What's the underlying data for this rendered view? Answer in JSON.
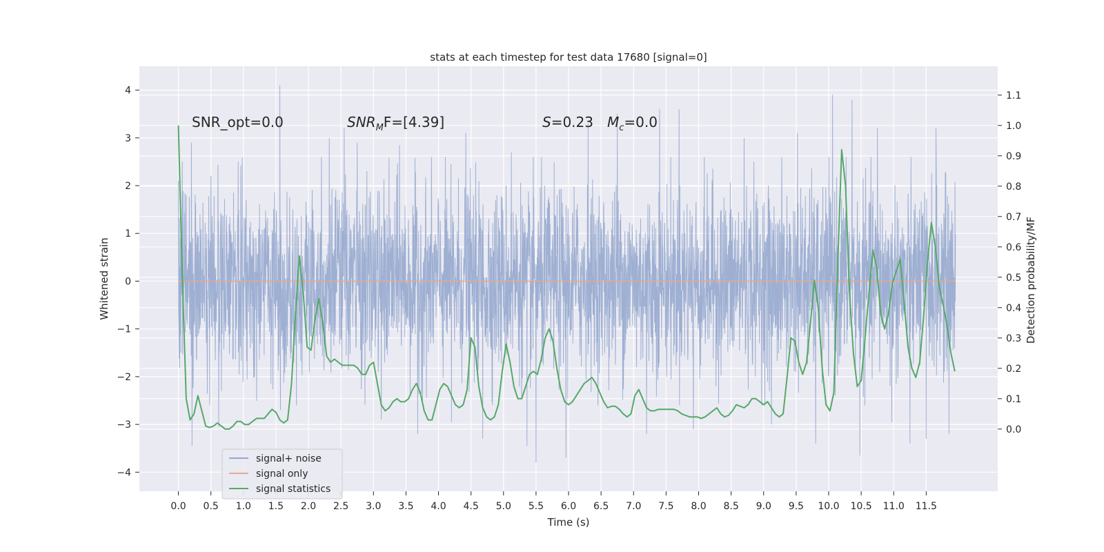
{
  "chart_data": {
    "type": "line",
    "title": "stats at each timestep for test data 17680 [signal=0]",
    "xlabel": "Time (s)",
    "ylabel_left": "Whitened strain",
    "ylabel_right": "Detection probability/MF",
    "xlim": [
      -0.6,
      12.6
    ],
    "ylim_left": [
      -4.4,
      4.5
    ],
    "ylim_right": [
      -0.205,
      1.195
    ],
    "x_ticks": [
      0.0,
      0.5,
      1.0,
      1.5,
      2.0,
      2.5,
      3.0,
      3.5,
      4.0,
      4.5,
      5.0,
      5.5,
      6.0,
      6.5,
      7.0,
      7.5,
      8.0,
      8.5,
      9.0,
      9.5,
      10.0,
      10.5,
      11.0,
      11.5
    ],
    "x_tick_labels": [
      "0.0",
      "0.5",
      "1.0",
      "1.5",
      "2.0",
      "2.5",
      "3.0",
      "3.5",
      "4.0",
      "4.5",
      "5.0",
      "5.5",
      "6.0",
      "6.5",
      "7.0",
      "7.5",
      "8.0",
      "8.5",
      "9.0",
      "9.5",
      "10.0",
      "10.5",
      "11.0",
      "11.5"
    ],
    "y_left_ticks": [
      -4,
      -3,
      -2,
      -1,
      0,
      1,
      2,
      3,
      4
    ],
    "y_left_tick_labels": [
      "−4",
      "−3",
      "−2",
      "−1",
      "0",
      "1",
      "2",
      "3",
      "4"
    ],
    "y_right_ticks": [
      0.0,
      0.1,
      0.2,
      0.3,
      0.4,
      0.5,
      0.6,
      0.7,
      0.8,
      0.9,
      1.0,
      1.1
    ],
    "y_right_tick_labels": [
      "0.0",
      "0.1",
      "0.2",
      "0.3",
      "0.4",
      "0.5",
      "0.6",
      "0.7",
      "0.8",
      "0.9",
      "1.0",
      "1.1"
    ],
    "annotations": {
      "snr_opt": "SNR_opt=0.0",
      "snr_mf_main": "SNR",
      "snr_mf_sub": "M",
      "snr_mf_tail": "F=[4.39]",
      "s_italic": "S",
      "s_tail": "=0.23",
      "mc_main": "M",
      "mc_sub": "c",
      "mc_tail": "=0.0"
    },
    "legend": {
      "position": "lower-left",
      "entries": [
        {
          "label": "signal+ noise",
          "color": "#92a7cf"
        },
        {
          "label": "signal only",
          "color": "#e5a990"
        },
        {
          "label": "signal statistics",
          "color": "#55a868"
        }
      ]
    },
    "series": [
      {
        "name": "signal+ noise",
        "axis": "left",
        "color": "#9aacd0",
        "description": "dense whitened strain samples from 0.0 to 11.95 s, mostly within about [-2, 2]",
        "t_start": 0.0,
        "t_end": 11.95,
        "spikes": [
          {
            "t": 0.0,
            "v": 2.1
          },
          {
            "t": 0.06,
            "v": 2.5
          },
          {
            "t": 0.2,
            "v": 2.9
          },
          {
            "t": 0.21,
            "v": -3.45
          },
          {
            "t": 0.5,
            "v": 2.2
          },
          {
            "t": 0.62,
            "v": -3.05
          },
          {
            "t": 0.92,
            "v": 2.5
          },
          {
            "t": 1.56,
            "v": 4.1
          },
          {
            "t": 1.57,
            "v": -2.7
          },
          {
            "t": 2.2,
            "v": 2.6
          },
          {
            "t": 2.32,
            "v": 3.0
          },
          {
            "t": 2.55,
            "v": 3.2
          },
          {
            "t": 2.75,
            "v": 2.9
          },
          {
            "t": 3.12,
            "v": -2.9
          },
          {
            "t": 3.4,
            "v": 2.85
          },
          {
            "t": 3.68,
            "v": -3.2
          },
          {
            "t": 4.2,
            "v": -2.95
          },
          {
            "t": 4.42,
            "v": 3.1
          },
          {
            "t": 4.68,
            "v": -3.3
          },
          {
            "t": 5.12,
            "v": 2.7
          },
          {
            "t": 5.36,
            "v": -3.45
          },
          {
            "t": 5.5,
            "v": -3.8
          },
          {
            "t": 5.96,
            "v": -3.7
          },
          {
            "t": 6.3,
            "v": 3.3
          },
          {
            "t": 6.75,
            "v": 3.5
          },
          {
            "t": 7.2,
            "v": -3.2
          },
          {
            "t": 7.4,
            "v": 3.6
          },
          {
            "t": 7.7,
            "v": 3.6
          },
          {
            "t": 7.92,
            "v": -3.1
          },
          {
            "t": 8.7,
            "v": 3.0
          },
          {
            "t": 9.12,
            "v": -3.0
          },
          {
            "t": 9.52,
            "v": 3.1
          },
          {
            "t": 9.8,
            "v": -3.4
          },
          {
            "t": 10.06,
            "v": 3.9
          },
          {
            "t": 10.36,
            "v": 3.8
          },
          {
            "t": 10.48,
            "v": -3.65
          },
          {
            "t": 10.75,
            "v": 3.2
          },
          {
            "t": 10.97,
            "v": -2.95
          },
          {
            "t": 11.25,
            "v": -3.4
          },
          {
            "t": 11.5,
            "v": -3.3
          },
          {
            "t": 11.65,
            "v": 3.2
          },
          {
            "t": 11.85,
            "v": -3.2
          }
        ]
      },
      {
        "name": "signal only",
        "axis": "left",
        "color": "#e5a990",
        "t": [
          0.0,
          11.95
        ],
        "values": [
          0.0,
          0.0
        ]
      },
      {
        "name": "signal statistics",
        "axis": "right",
        "color": "#55a868",
        "t": [
          0.0,
          0.06,
          0.12,
          0.18,
          0.24,
          0.3,
          0.36,
          0.42,
          0.48,
          0.54,
          0.6,
          0.66,
          0.72,
          0.78,
          0.84,
          0.9,
          0.96,
          1.02,
          1.08,
          1.14,
          1.2,
          1.26,
          1.32,
          1.38,
          1.44,
          1.5,
          1.56,
          1.62,
          1.68,
          1.74,
          1.8,
          1.86,
          1.92,
          1.98,
          2.04,
          2.1,
          2.16,
          2.22,
          2.28,
          2.34,
          2.4,
          2.46,
          2.52,
          2.58,
          2.64,
          2.7,
          2.76,
          2.82,
          2.88,
          2.94,
          3.0,
          3.06,
          3.12,
          3.18,
          3.24,
          3.3,
          3.36,
          3.42,
          3.48,
          3.54,
          3.6,
          3.66,
          3.72,
          3.78,
          3.84,
          3.9,
          3.96,
          4.02,
          4.08,
          4.14,
          4.2,
          4.26,
          4.32,
          4.38,
          4.44,
          4.5,
          4.56,
          4.62,
          4.68,
          4.74,
          4.8,
          4.86,
          4.92,
          4.98,
          5.04,
          5.1,
          5.16,
          5.22,
          5.28,
          5.34,
          5.4,
          5.46,
          5.52,
          5.58,
          5.64,
          5.7,
          5.76,
          5.82,
          5.88,
          5.94,
          6.0,
          6.06,
          6.12,
          6.18,
          6.24,
          6.3,
          6.36,
          6.42,
          6.48,
          6.54,
          6.6,
          6.66,
          6.72,
          6.78,
          6.84,
          6.9,
          6.96,
          7.02,
          7.08,
          7.14,
          7.2,
          7.26,
          7.32,
          7.38,
          7.44,
          7.5,
          7.56,
          7.62,
          7.68,
          7.74,
          7.8,
          7.86,
          7.92,
          7.98,
          8.04,
          8.1,
          8.16,
          8.22,
          8.28,
          8.34,
          8.4,
          8.46,
          8.52,
          8.58,
          8.64,
          8.7,
          8.76,
          8.82,
          8.88,
          8.94,
          9.0,
          9.06,
          9.12,
          9.18,
          9.24,
          9.3,
          9.36,
          9.42,
          9.48,
          9.54,
          9.6,
          9.66,
          9.72,
          9.78,
          9.84,
          9.9,
          9.96,
          10.02,
          10.08,
          10.14,
          10.2,
          10.26,
          10.32,
          10.38,
          10.44,
          10.5,
          10.56,
          10.62,
          10.68,
          10.74,
          10.8,
          10.86,
          10.92,
          10.98,
          11.04,
          11.1,
          11.16,
          11.22,
          11.28,
          11.34,
          11.4,
          11.46,
          11.52,
          11.58,
          11.64,
          11.7,
          11.76,
          11.82,
          11.88,
          11.94
        ],
        "values": [
          1.0,
          0.5,
          0.1,
          0.03,
          0.05,
          0.11,
          0.06,
          0.01,
          0.005,
          0.01,
          0.02,
          0.01,
          -0.0,
          -0.0,
          0.01,
          0.025,
          0.025,
          0.015,
          0.015,
          0.025,
          0.035,
          0.035,
          0.035,
          0.05,
          0.065,
          0.055,
          0.03,
          0.02,
          0.03,
          0.15,
          0.38,
          0.57,
          0.45,
          0.27,
          0.26,
          0.36,
          0.43,
          0.35,
          0.24,
          0.22,
          0.23,
          0.22,
          0.21,
          0.21,
          0.21,
          0.21,
          0.2,
          0.18,
          0.18,
          0.21,
          0.22,
          0.15,
          0.08,
          0.06,
          0.07,
          0.09,
          0.1,
          0.09,
          0.09,
          0.1,
          0.13,
          0.15,
          0.12,
          0.06,
          0.03,
          0.03,
          0.08,
          0.13,
          0.15,
          0.14,
          0.11,
          0.08,
          0.07,
          0.08,
          0.13,
          0.3,
          0.27,
          0.14,
          0.07,
          0.04,
          0.03,
          0.04,
          0.08,
          0.19,
          0.28,
          0.22,
          0.14,
          0.1,
          0.1,
          0.14,
          0.18,
          0.19,
          0.18,
          0.23,
          0.3,
          0.33,
          0.29,
          0.2,
          0.13,
          0.09,
          0.08,
          0.09,
          0.11,
          0.13,
          0.15,
          0.16,
          0.17,
          0.15,
          0.12,
          0.09,
          0.07,
          0.075,
          0.075,
          0.065,
          0.05,
          0.04,
          0.05,
          0.11,
          0.13,
          0.1,
          0.07,
          0.06,
          0.06,
          0.065,
          0.065,
          0.065,
          0.065,
          0.065,
          0.06,
          0.05,
          0.045,
          0.04,
          0.04,
          0.04,
          0.035,
          0.04,
          0.05,
          0.06,
          0.07,
          0.05,
          0.04,
          0.045,
          0.06,
          0.08,
          0.075,
          0.07,
          0.08,
          0.1,
          0.1,
          0.09,
          0.08,
          0.09,
          0.07,
          0.05,
          0.04,
          0.05,
          0.17,
          0.3,
          0.29,
          0.22,
          0.18,
          0.22,
          0.35,
          0.49,
          0.4,
          0.2,
          0.08,
          0.06,
          0.12,
          0.55,
          0.92,
          0.8,
          0.45,
          0.25,
          0.14,
          0.16,
          0.3,
          0.45,
          0.59,
          0.53,
          0.38,
          0.33,
          0.38,
          0.48,
          0.52,
          0.56,
          0.42,
          0.27,
          0.2,
          0.17,
          0.22,
          0.37,
          0.55,
          0.68,
          0.6,
          0.47,
          0.41,
          0.34,
          0.25,
          0.19
        ]
      }
    ]
  }
}
